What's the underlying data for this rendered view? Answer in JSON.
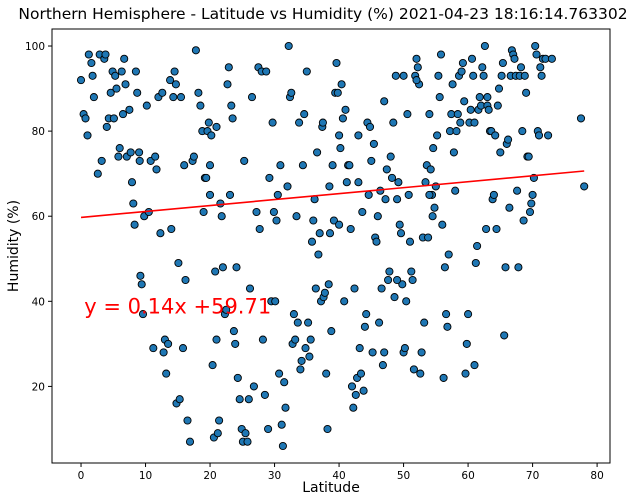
{
  "chart_data": {
    "type": "scatter",
    "title": "Northern Hemisphere - Latitude vs Humidity (%) 2021-04-23 18:16:14.763302",
    "xlabel": "Latitude",
    "ylabel": "Humidity (%)",
    "xlim": [
      -4.5,
      82
    ],
    "ylim": [
      2,
      104
    ],
    "xticks": [
      0,
      10,
      20,
      30,
      40,
      50,
      60,
      70,
      80
    ],
    "yticks": [
      20,
      40,
      60,
      80,
      100
    ],
    "grid": false,
    "marker_color": "#1f77b4",
    "marker_edge": "#000000",
    "regression": {
      "slope": 0.14,
      "intercept": 59.71,
      "x_range": [
        0,
        78
      ],
      "color": "#ff0000"
    },
    "equation": "y = 0.14x +59.71",
    "equation_pos": {
      "x": 0.5,
      "y": 39
    },
    "points": [
      [
        0,
        92
      ],
      [
        0.4,
        84
      ],
      [
        0.7,
        83
      ],
      [
        1,
        79
      ],
      [
        1.2,
        98
      ],
      [
        1.6,
        96
      ],
      [
        1.8,
        93
      ],
      [
        2,
        88
      ],
      [
        2.6,
        70
      ],
      [
        2.9,
        98
      ],
      [
        3.2,
        73
      ],
      [
        3.6,
        97
      ],
      [
        3.8,
        98
      ],
      [
        4,
        81
      ],
      [
        4.3,
        83
      ],
      [
        4.6,
        89
      ],
      [
        4.9,
        94
      ],
      [
        5.1,
        83
      ],
      [
        5.3,
        93
      ],
      [
        5.5,
        90
      ],
      [
        5.8,
        74
      ],
      [
        6,
        76
      ],
      [
        6.3,
        94
      ],
      [
        6.5,
        84
      ],
      [
        6.7,
        97
      ],
      [
        6.9,
        91
      ],
      [
        7.1,
        74
      ],
      [
        7.5,
        85
      ],
      [
        7.7,
        75
      ],
      [
        7.9,
        68
      ],
      [
        8.1,
        63
      ],
      [
        8.3,
        58
      ],
      [
        8.5,
        94
      ],
      [
        8.7,
        89
      ],
      [
        9,
        75
      ],
      [
        9.1,
        73
      ],
      [
        9.2,
        46
      ],
      [
        9.4,
        44
      ],
      [
        9.6,
        37
      ],
      [
        9.8,
        60
      ],
      [
        10.2,
        86
      ],
      [
        10.5,
        61
      ],
      [
        10.8,
        73
      ],
      [
        11.2,
        29
      ],
      [
        11.5,
        74
      ],
      [
        11.7,
        71
      ],
      [
        12,
        88
      ],
      [
        12.3,
        56
      ],
      [
        12.6,
        89
      ],
      [
        12.8,
        28
      ],
      [
        13,
        31
      ],
      [
        13.2,
        23
      ],
      [
        13.5,
        30
      ],
      [
        13.8,
        92
      ],
      [
        14,
        57
      ],
      [
        14.3,
        88
      ],
      [
        14.5,
        94
      ],
      [
        14.7,
        91
      ],
      [
        14.8,
        16
      ],
      [
        15.1,
        49
      ],
      [
        15.3,
        17
      ],
      [
        15.5,
        88
      ],
      [
        15.8,
        29
      ],
      [
        16,
        72
      ],
      [
        16.2,
        45
      ],
      [
        16.5,
        12
      ],
      [
        16.9,
        7
      ],
      [
        17.3,
        73
      ],
      [
        17.5,
        74
      ],
      [
        17.8,
        99
      ],
      [
        18.2,
        89
      ],
      [
        18.5,
        86
      ],
      [
        18.8,
        80
      ],
      [
        19,
        61
      ],
      [
        19.2,
        69
      ],
      [
        19.4,
        69
      ],
      [
        19.6,
        80
      ],
      [
        19.8,
        82
      ],
      [
        20,
        72
      ],
      [
        20.2,
        79
      ],
      [
        20.4,
        25
      ],
      [
        20.6,
        8
      ],
      [
        20.8,
        47
      ],
      [
        21,
        81
      ],
      [
        21.2,
        9
      ],
      [
        21.4,
        12
      ],
      [
        21.6,
        63
      ],
      [
        21.8,
        60
      ],
      [
        22,
        48
      ],
      [
        22.3,
        37
      ],
      [
        22.5,
        38
      ],
      [
        22.7,
        91
      ],
      [
        22.9,
        95
      ],
      [
        23.1,
        65
      ],
      [
        23.3,
        86
      ],
      [
        23.5,
        83
      ],
      [
        23.7,
        33
      ],
      [
        23.9,
        30
      ],
      [
        24.1,
        48
      ],
      [
        24.3,
        22
      ],
      [
        24.6,
        17
      ],
      [
        24.9,
        10
      ],
      [
        25.1,
        7
      ],
      [
        25.3,
        73
      ],
      [
        25.5,
        9
      ],
      [
        25.8,
        7
      ],
      [
        26.2,
        43
      ],
      [
        26.5,
        88
      ],
      [
        26.8,
        20
      ],
      [
        27.2,
        61
      ],
      [
        27.5,
        95
      ],
      [
        27.7,
        57
      ],
      [
        28,
        94
      ],
      [
        28.2,
        31
      ],
      [
        28.5,
        18
      ],
      [
        28.7,
        94
      ],
      [
        29,
        10
      ],
      [
        29.2,
        69
      ],
      [
        29.5,
        40
      ],
      [
        29.7,
        82
      ],
      [
        29.9,
        61
      ],
      [
        30.1,
        40
      ],
      [
        30.3,
        59
      ],
      [
        30.5,
        65
      ],
      [
        30.7,
        23
      ],
      [
        30.9,
        72
      ],
      [
        31.1,
        11
      ],
      [
        31.3,
        6
      ],
      [
        31.5,
        21
      ],
      [
        31.7,
        15
      ],
      [
        32,
        67
      ],
      [
        32.2,
        100
      ],
      [
        32.4,
        88
      ],
      [
        32.6,
        89
      ],
      [
        32.8,
        30
      ],
      [
        33,
        37
      ],
      [
        33.2,
        31
      ],
      [
        33.4,
        60
      ],
      [
        33.6,
        35
      ],
      [
        33.8,
        82
      ],
      [
        34,
        24
      ],
      [
        34.2,
        26
      ],
      [
        34.4,
        72
      ],
      [
        34.6,
        84
      ],
      [
        34.8,
        29
      ],
      [
        35,
        94
      ],
      [
        35.2,
        35
      ],
      [
        35.4,
        27
      ],
      [
        35.6,
        31
      ],
      [
        35.8,
        54
      ],
      [
        36,
        59
      ],
      [
        36.2,
        64
      ],
      [
        36.4,
        43
      ],
      [
        36.6,
        75
      ],
      [
        36.8,
        51
      ],
      [
        37,
        56
      ],
      [
        37.2,
        40
      ],
      [
        37.4,
        81
      ],
      [
        37.6,
        41
      ],
      [
        37.8,
        42
      ],
      [
        38,
        23
      ],
      [
        38.2,
        10
      ],
      [
        38.4,
        44
      ],
      [
        38.6,
        56
      ],
      [
        38.8,
        33
      ],
      [
        39,
        72
      ],
      [
        39.2,
        59
      ],
      [
        39.4,
        89
      ],
      [
        39.6,
        96
      ],
      [
        39.8,
        89
      ],
      [
        40,
        58
      ],
      [
        40.2,
        76
      ],
      [
        40.4,
        91
      ],
      [
        40.6,
        83
      ],
      [
        40.8,
        40
      ],
      [
        41,
        85
      ],
      [
        41.2,
        68
      ],
      [
        41.4,
        72
      ],
      [
        41.6,
        72
      ],
      [
        41.8,
        57
      ],
      [
        42,
        20
      ],
      [
        42.2,
        15
      ],
      [
        42.4,
        43
      ],
      [
        42.6,
        18
      ],
      [
        42.8,
        22
      ],
      [
        43,
        68
      ],
      [
        43.2,
        29
      ],
      [
        43.4,
        23
      ],
      [
        43.6,
        61
      ],
      [
        43.8,
        19
      ],
      [
        44,
        34
      ],
      [
        44.2,
        37
      ],
      [
        44.4,
        82
      ],
      [
        44.6,
        65
      ],
      [
        44.8,
        81
      ],
      [
        45,
        73
      ],
      [
        45.2,
        28
      ],
      [
        45.4,
        77
      ],
      [
        45.6,
        55
      ],
      [
        45.8,
        54
      ],
      [
        46,
        60
      ],
      [
        46.2,
        35
      ],
      [
        46.4,
        66
      ],
      [
        46.6,
        43
      ],
      [
        46.8,
        25
      ],
      [
        47,
        28
      ],
      [
        47.2,
        64
      ],
      [
        47.4,
        71
      ],
      [
        47.6,
        45
      ],
      [
        47.8,
        47
      ],
      [
        48,
        74
      ],
      [
        48.2,
        69
      ],
      [
        48.4,
        82
      ],
      [
        48.6,
        41
      ],
      [
        48.8,
        93
      ],
      [
        49,
        64
      ],
      [
        49.2,
        68
      ],
      [
        49.4,
        58
      ],
      [
        49.6,
        56
      ],
      [
        49.8,
        44
      ],
      [
        50,
        28
      ],
      [
        50.2,
        29
      ],
      [
        50.4,
        40
      ],
      [
        50.6,
        84
      ],
      [
        50.8,
        65
      ],
      [
        51,
        54
      ],
      [
        51.2,
        47
      ],
      [
        51.4,
        45
      ],
      [
        51.6,
        24
      ],
      [
        51.8,
        93
      ],
      [
        52,
        97
      ],
      [
        52.2,
        95
      ],
      [
        52.4,
        91
      ],
      [
        52.6,
        23
      ],
      [
        52.8,
        28
      ],
      [
        53,
        55
      ],
      [
        53.2,
        35
      ],
      [
        53.4,
        68
      ],
      [
        53.6,
        72
      ],
      [
        53.8,
        55
      ],
      [
        54,
        84
      ],
      [
        54.2,
        71
      ],
      [
        54.4,
        65
      ],
      [
        54.6,
        76
      ],
      [
        54.8,
        62
      ],
      [
        55,
        67
      ],
      [
        55.2,
        79
      ],
      [
        55.4,
        93
      ],
      [
        55.6,
        88
      ],
      [
        55.8,
        98
      ],
      [
        56,
        58
      ],
      [
        56.2,
        22
      ],
      [
        56.4,
        48
      ],
      [
        56.6,
        37
      ],
      [
        56.8,
        34
      ],
      [
        57,
        51
      ],
      [
        57.2,
        80
      ],
      [
        57.4,
        84
      ],
      [
        57.6,
        91
      ],
      [
        57.8,
        75
      ],
      [
        58,
        66
      ],
      [
        58.2,
        80
      ],
      [
        58.4,
        84
      ],
      [
        58.6,
        93
      ],
      [
        58.8,
        82
      ],
      [
        59,
        94
      ],
      [
        59.2,
        96
      ],
      [
        59.4,
        87
      ],
      [
        59.6,
        23
      ],
      [
        59.8,
        30
      ],
      [
        60,
        37
      ],
      [
        60.2,
        82
      ],
      [
        60.4,
        85
      ],
      [
        60.6,
        97
      ],
      [
        60.8,
        93
      ],
      [
        61,
        25
      ],
      [
        61.2,
        49
      ],
      [
        61.4,
        53
      ],
      [
        61.6,
        85
      ],
      [
        61.8,
        88
      ],
      [
        62,
        86
      ],
      [
        62.2,
        95
      ],
      [
        62.4,
        93
      ],
      [
        62.6,
        100
      ],
      [
        62.8,
        57
      ],
      [
        63,
        86
      ],
      [
        63.2,
        85
      ],
      [
        63.4,
        80
      ],
      [
        63.6,
        80
      ],
      [
        63.8,
        64
      ],
      [
        64,
        65
      ],
      [
        64.2,
        79
      ],
      [
        64.4,
        57
      ],
      [
        64.6,
        86
      ],
      [
        64.8,
        90
      ],
      [
        65,
        75
      ],
      [
        65.2,
        93
      ],
      [
        65.4,
        96
      ],
      [
        65.6,
        32
      ],
      [
        65.8,
        48
      ],
      [
        66,
        77
      ],
      [
        66.2,
        78
      ],
      [
        66.4,
        62
      ],
      [
        66.6,
        93
      ],
      [
        66.8,
        99
      ],
      [
        67,
        98
      ],
      [
        67.2,
        97
      ],
      [
        67.4,
        93
      ],
      [
        67.6,
        66
      ],
      [
        67.8,
        48
      ],
      [
        68,
        93
      ],
      [
        68.2,
        95
      ],
      [
        68.4,
        80
      ],
      [
        68.6,
        59
      ],
      [
        68.8,
        93
      ],
      [
        69,
        89
      ],
      [
        69.2,
        74
      ],
      [
        69.4,
        74
      ],
      [
        69.6,
        61
      ],
      [
        69.8,
        63
      ],
      [
        70,
        65
      ],
      [
        70.2,
        69
      ],
      [
        70.4,
        100
      ],
      [
        70.6,
        98
      ],
      [
        70.8,
        80
      ],
      [
        71,
        79
      ],
      [
        71.2,
        95
      ],
      [
        71.4,
        93
      ],
      [
        71.6,
        97
      ],
      [
        72,
        97
      ],
      [
        72.4,
        79
      ],
      [
        73,
        97
      ],
      [
        77.5,
        83
      ],
      [
        78,
        67
      ],
      [
        20,
        65
      ],
      [
        21,
        31
      ],
      [
        26,
        17
      ],
      [
        37.5,
        82
      ],
      [
        40,
        79
      ],
      [
        43,
        79
      ],
      [
        52,
        92
      ],
      [
        54,
        65
      ],
      [
        61,
        82
      ],
      [
        63,
        88
      ],
      [
        47,
        87
      ],
      [
        49,
        45
      ],
      [
        54.5,
        60
      ],
      [
        50,
        93
      ],
      [
        38.5,
        67
      ]
    ]
  }
}
